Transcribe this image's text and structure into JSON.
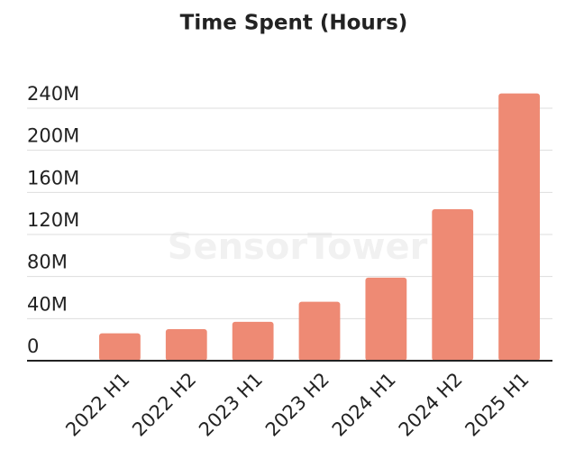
{
  "chart_data": {
    "type": "bar",
    "title": "Time Spent (Hours)",
    "watermark": "SensorTower",
    "categories": [
      "2022 H1",
      "2022 H2",
      "2023 H1",
      "2023 H2",
      "2024 H1",
      "2024 H2",
      "2025 H1"
    ],
    "values": [
      26000000,
      30000000,
      37000000,
      56000000,
      79000000,
      144000000,
      254000000
    ],
    "color": "#ee8a74",
    "ylim": [
      0,
      240000000
    ],
    "yticks": [
      {
        "value": 0,
        "label": "0"
      },
      {
        "value": 40000000,
        "label": "40M"
      },
      {
        "value": 80000000,
        "label": "80M"
      },
      {
        "value": 120000000,
        "label": "120M"
      },
      {
        "value": 160000000,
        "label": "160M"
      },
      {
        "value": 200000000,
        "label": "200M"
      },
      {
        "value": 240000000,
        "label": "240M"
      }
    ],
    "grid": true
  }
}
